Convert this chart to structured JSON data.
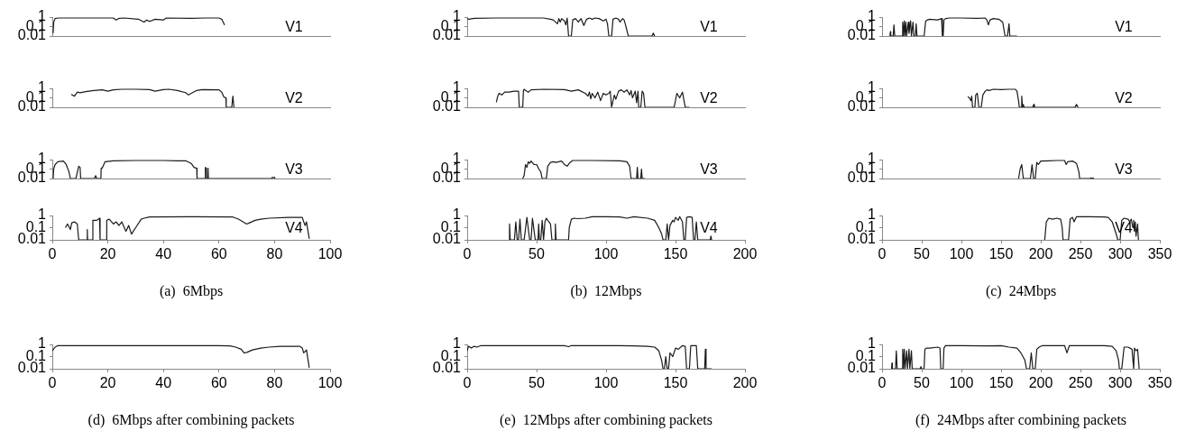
{
  "chart_data": [
    {
      "type": "line",
      "xlim": [
        0,
        100
      ],
      "xticks": [
        0,
        20,
        40,
        60,
        80,
        100
      ],
      "ylim": [
        0.01,
        1
      ],
      "yticks": [
        0.01,
        0.1,
        1
      ],
      "log": true,
      "line_style": "solid",
      "tick_labels": "y",
      "series": [
        {
          "name": "V1",
          "color": "#1a1a1a",
          "x": [
            0.3,
            0.5,
            1,
            2,
            10,
            22,
            23,
            24,
            26,
            31,
            33,
            34,
            35,
            37,
            40,
            41,
            50,
            55,
            60,
            61,
            62
          ],
          "values": [
            0.02,
            0.3,
            0.7,
            0.8,
            0.8,
            0.8,
            0.5,
            0.75,
            0.8,
            0.6,
            0.3,
            0.5,
            0.35,
            0.6,
            0.5,
            0.8,
            0.75,
            0.8,
            0.8,
            0.6,
            0.15
          ]
        }
      ]
    },
    {
      "type": "line",
      "xlim": [
        0,
        100
      ],
      "xticks": [
        0,
        20,
        40,
        60,
        80,
        100
      ],
      "ylim": [
        0.01,
        1
      ],
      "yticks": [
        0.01,
        0.1,
        1
      ],
      "log": true,
      "line_style": "solid",
      "tick_labels": "y",
      "series": [
        {
          "name": "V2",
          "color": "#1a1a1a",
          "x": [
            6.8,
            8,
            9,
            10,
            12,
            15,
            18,
            20,
            22,
            25,
            30,
            35,
            37,
            40,
            42,
            45,
            48,
            49,
            50,
            52,
            54,
            60,
            61,
            61.8,
            62.5,
            62.6,
            64.6,
            65,
            65.4
          ],
          "values": [
            0.23,
            0.15,
            0.4,
            0.35,
            0.45,
            0.6,
            0.7,
            0.5,
            0.7,
            0.8,
            0.8,
            0.75,
            0.5,
            0.75,
            0.8,
            0.6,
            0.35,
            0.2,
            0.3,
            0.6,
            0.75,
            0.7,
            0.4,
            0.12,
            0.1,
            0.01,
            0.01,
            0.15,
            0.01
          ]
        }
      ]
    },
    {
      "type": "line",
      "xlim": [
        0,
        100
      ],
      "xticks": [
        0,
        20,
        40,
        60,
        80,
        100
      ],
      "ylim": [
        0.01,
        1
      ],
      "yticks": [
        0.01,
        0.1,
        1
      ],
      "log": true,
      "line_style": "solid",
      "tick_labels": "y",
      "series": [
        {
          "name": "V3",
          "color": "#1a1a1a",
          "x": [
            0.3,
            0.5,
            1,
            2,
            4,
            5,
            6,
            6.5,
            8.5,
            9.5,
            10,
            10.2,
            15.2,
            15.6,
            16,
            17.5,
            17.6,
            18,
            19,
            22,
            30,
            40,
            45,
            48,
            50,
            51,
            52,
            52.1,
            55,
            55.1,
            55.5,
            55.6,
            56,
            56.1,
            56.2,
            79,
            79.1,
            80,
            80.1
          ],
          "values": [
            0.01,
            0.1,
            0.3,
            0.6,
            0.7,
            0.3,
            0.05,
            0.01,
            0.01,
            0.2,
            0.15,
            0.01,
            0.01,
            0.02,
            0.01,
            0.01,
            0.13,
            0.13,
            0.6,
            0.75,
            0.8,
            0.8,
            0.75,
            0.75,
            0.4,
            0.15,
            0.12,
            0.01,
            0.01,
            0.15,
            0.12,
            0.01,
            0.01,
            0.12,
            0.01,
            0.01,
            0.013,
            0.013,
            0.01
          ]
        }
      ]
    },
    {
      "type": "line",
      "xlim": [
        0,
        100
      ],
      "xticks": [
        0,
        20,
        40,
        60,
        80,
        100
      ],
      "ylim": [
        0.01,
        1
      ],
      "yticks": [
        0.01,
        0.1,
        1
      ],
      "log": true,
      "line_style": "solid",
      "xlabel": "(a)  6Mbps",
      "series": [
        {
          "name": "V4",
          "color": "#1a1a1a",
          "x": [
            4.7,
            5.5,
            6.5,
            7,
            8,
            9,
            9.5,
            12.5,
            12.6,
            12.7,
            14.5,
            14.6,
            16,
            17,
            17.2,
            19.5,
            19.6,
            20.5,
            22,
            23,
            24,
            25,
            26.5,
            27.5,
            28.5,
            30,
            32,
            33,
            35,
            50,
            65,
            67,
            70,
            71,
            73,
            75,
            78,
            85,
            90,
            90.5,
            91,
            91.5,
            92.5
          ],
          "values": [
            0.1,
            0.2,
            0.07,
            0.25,
            0.3,
            0.2,
            0.01,
            0.01,
            0.07,
            0.01,
            0.01,
            0.4,
            0.4,
            0.6,
            0.01,
            0.01,
            0.4,
            0.5,
            0.2,
            0.3,
            0.15,
            0.3,
            0.05,
            0.15,
            0.03,
            0.1,
            0.5,
            0.6,
            0.75,
            0.8,
            0.75,
            0.5,
            0.2,
            0.25,
            0.4,
            0.5,
            0.6,
            0.7,
            0.7,
            0.3,
            0.15,
            0.3,
            0.012
          ]
        }
      ]
    },
    {
      "type": "line",
      "xlim": [
        0,
        200
      ],
      "xticks": [
        0,
        50,
        100,
        150,
        200
      ],
      "ylim": [
        0.01,
        1
      ],
      "yticks": [
        0.01,
        0.1,
        1
      ],
      "log": true,
      "line_style": "solid",
      "tick_labels": "y",
      "series": [
        {
          "name": "V1",
          "color": "#1a1a1a",
          "x": [
            0,
            1,
            5,
            20,
            55,
            60,
            62,
            65,
            66,
            67,
            68,
            70,
            71,
            72,
            73,
            75,
            76,
            78,
            80,
            82,
            83,
            84,
            86,
            88,
            90,
            92,
            95,
            98,
            100,
            101,
            102,
            104,
            105,
            107,
            109,
            110,
            112,
            113,
            114,
            116,
            133,
            134,
            135
          ],
          "values": [
            0.7,
            0.6,
            0.75,
            0.8,
            0.8,
            0.6,
            0.5,
            0.2,
            0.7,
            0.3,
            0.7,
            0.4,
            0.15,
            0.8,
            0.01,
            0.01,
            0.5,
            0.7,
            0.3,
            0.7,
            0.3,
            0.13,
            0.6,
            0.8,
            0.6,
            0.8,
            0.7,
            0.4,
            0.6,
            0.2,
            0.01,
            0.01,
            0.6,
            0.8,
            0.6,
            0.3,
            0.7,
            0.5,
            0.15,
            0.01,
            0.01,
            0.02,
            0.01
          ]
        }
      ]
    },
    {
      "type": "line",
      "xlim": [
        0,
        200
      ],
      "xticks": [
        0,
        50,
        100,
        150,
        200
      ],
      "ylim": [
        0.01,
        1
      ],
      "yticks": [
        0.01,
        0.1,
        1
      ],
      "log": true,
      "line_style": "solid",
      "tick_labels": "y",
      "series": [
        {
          "name": "V2",
          "color": "#1a1a1a",
          "x": [
            21,
            22,
            23,
            25,
            27,
            30,
            34,
            37,
            37.5,
            40,
            40.5,
            41,
            42,
            44,
            46,
            55,
            70,
            75,
            80,
            85,
            87,
            88,
            89,
            90,
            92,
            94,
            96,
            98,
            100,
            102,
            103,
            104,
            105,
            106,
            107,
            109,
            111,
            113,
            115,
            117,
            118,
            119,
            121,
            122,
            123,
            123.5,
            125,
            126,
            127,
            128,
            149,
            151,
            153,
            155,
            157,
            160
          ],
          "values": [
            0.035,
            0.15,
            0.3,
            0.2,
            0.4,
            0.4,
            0.5,
            0.5,
            0.01,
            0.01,
            0.6,
            0.8,
            0.6,
            0.4,
            0.7,
            0.8,
            0.75,
            0.5,
            0.7,
            0.3,
            0.15,
            0.4,
            0.08,
            0.3,
            0.1,
            0.4,
            0.05,
            0.3,
            0.2,
            0.3,
            0.5,
            0.01,
            0.05,
            0.2,
            0.07,
            0.5,
            0.7,
            0.4,
            0.7,
            0.2,
            0.6,
            0.1,
            0.5,
            0.03,
            0.5,
            0.01,
            0.01,
            0.5,
            0.3,
            0.01,
            0.01,
            0.3,
            0.1,
            0.4,
            0.01,
            0.01
          ]
        }
      ]
    },
    {
      "type": "line",
      "xlim": [
        0,
        200
      ],
      "xticks": [
        0,
        50,
        100,
        150,
        200
      ],
      "ylim": [
        0.01,
        1
      ],
      "yticks": [
        0.01,
        0.1,
        1
      ],
      "log": true,
      "line_style": "solid",
      "tick_labels": "y",
      "series": [
        {
          "name": "V3",
          "color": "#1a1a1a",
          "x": [
            40,
            41,
            42,
            43,
            44,
            45,
            46,
            48,
            50,
            52,
            53,
            54,
            57,
            58,
            60,
            62,
            64,
            68,
            70,
            72,
            74,
            76,
            90,
            110,
            115,
            117,
            118,
            122,
            122.5,
            123,
            125,
            125.5,
            126,
            128
          ],
          "values": [
            0.01,
            0.02,
            0.3,
            0.15,
            0.6,
            0.4,
            0.7,
            0.3,
            0.3,
            0.08,
            0.05,
            0.01,
            0.01,
            0.2,
            0.5,
            0.6,
            0.5,
            0.7,
            0.3,
            0.2,
            0.5,
            0.8,
            0.8,
            0.75,
            0.6,
            0.2,
            0.01,
            0.01,
            0.15,
            0.01,
            0.01,
            0.1,
            0.01,
            0.01
          ]
        }
      ]
    },
    {
      "type": "line",
      "xlim": [
        0,
        200
      ],
      "xticks": [
        0,
        50,
        100,
        150,
        200
      ],
      "ylim": [
        0.01,
        1
      ],
      "yticks": [
        0.01,
        0.1,
        1
      ],
      "log": true,
      "line_style": "solid",
      "xlabel": "(b)  12Mbps",
      "series": [
        {
          "name": "V4",
          "color": "#1a1a1a",
          "x": [
            30,
            30.5,
            31,
            34,
            35,
            36,
            37,
            38,
            39,
            41,
            43,
            45,
            46,
            47,
            49,
            51,
            51.5,
            52,
            53,
            54,
            55,
            56,
            57,
            58,
            60,
            61,
            63,
            63.5,
            64,
            73,
            73.5,
            75,
            77,
            80,
            85,
            90,
            100,
            110,
            115,
            120,
            130,
            135,
            138,
            140,
            141,
            143,
            144,
            145,
            146,
            148,
            149,
            150,
            152,
            153,
            155,
            156,
            157,
            158,
            160,
            162,
            163,
            164,
            165,
            166,
            175,
            175.5,
            176
          ],
          "values": [
            0.01,
            0.2,
            0.01,
            0.01,
            0.3,
            0.01,
            0.01,
            0.5,
            0.01,
            0.01,
            0.7,
            0.01,
            0.01,
            0.6,
            0.01,
            0.01,
            0.2,
            0.01,
            0.01,
            0.4,
            0.01,
            0.3,
            0.6,
            0.4,
            0.2,
            0.01,
            0.01,
            0.2,
            0.01,
            0.01,
            0.1,
            0.5,
            0.6,
            0.55,
            0.6,
            0.8,
            0.8,
            0.75,
            0.6,
            0.8,
            0.6,
            0.4,
            0.1,
            0.03,
            0.01,
            0.01,
            0.2,
            0.01,
            0.15,
            0.4,
            0.3,
            0.7,
            0.4,
            0.8,
            0.3,
            0.01,
            0.01,
            0.7,
            0.8,
            0.7,
            0.01,
            0.01,
            0.3,
            0.01,
            0.01,
            0.02,
            0.01
          ]
        }
      ]
    },
    {
      "type": "line",
      "xlim": [
        0,
        350
      ],
      "xticks": [
        0,
        50,
        100,
        150,
        200,
        250,
        300,
        350
      ],
      "ylim": [
        0.01,
        1
      ],
      "yticks": [
        0.01,
        0.1,
        1
      ],
      "log": true,
      "line_style": "solid",
      "tick_labels": "y",
      "series": [
        {
          "name": "V1",
          "color": "#1a1a1a",
          "x": [
            10,
            10.5,
            11,
            14,
            15,
            16,
            25,
            26,
            27,
            28,
            29,
            30,
            31,
            33,
            34,
            36,
            37,
            39,
            40,
            42,
            43,
            44,
            52,
            53,
            55,
            57,
            60,
            70,
            75,
            76,
            77,
            78,
            80,
            85,
            100,
            120,
            130,
            132,
            134,
            136,
            140,
            147,
            152,
            155,
            158,
            160,
            161,
            170
          ],
          "values": [
            0.01,
            0.03,
            0.01,
            0.01,
            0.15,
            0.01,
            0.01,
            0.3,
            0.01,
            0.4,
            0.01,
            0.3,
            0.01,
            0.3,
            0.02,
            0.4,
            0.01,
            0.3,
            0.01,
            0.01,
            0.2,
            0.01,
            0.01,
            0.01,
            0.4,
            0.5,
            0.6,
            0.5,
            0.7,
            0.01,
            0.01,
            0.5,
            0.7,
            0.8,
            0.8,
            0.75,
            0.8,
            0.5,
            0.15,
            0.5,
            0.7,
            0.6,
            0.3,
            0.01,
            0.01,
            0.2,
            0.01,
            0.01
          ]
        }
      ]
    },
    {
      "type": "line",
      "xlim": [
        0,
        350
      ],
      "xticks": [
        0,
        50,
        100,
        150,
        200,
        250,
        300,
        350
      ],
      "ylim": [
        0.01,
        1
      ],
      "yticks": [
        0.01,
        0.1,
        1
      ],
      "log": true,
      "line_style": "solid",
      "tick_labels": "y",
      "series": [
        {
          "name": "V2",
          "color": "#1a1a1a",
          "x": [
            108,
            110,
            112,
            113,
            114,
            117,
            118,
            120,
            122,
            125,
            127,
            130,
            132,
            135,
            140,
            150,
            160,
            168,
            170,
            172,
            173,
            175,
            176,
            177,
            178,
            179,
            190,
            191,
            192,
            243,
            245,
            247
          ],
          "values": [
            0.13,
            0.1,
            0.05,
            0.15,
            0.01,
            0.01,
            0.2,
            0.3,
            0.01,
            0.01,
            0.2,
            0.5,
            0.7,
            0.6,
            0.8,
            0.75,
            0.8,
            0.8,
            0.5,
            0.05,
            0.01,
            0.01,
            0.15,
            0.01,
            0.02,
            0.01,
            0.01,
            0.02,
            0.01,
            0.01,
            0.02,
            0.01
          ]
        }
      ]
    },
    {
      "type": "line",
      "xlim": [
        0,
        350
      ],
      "xticks": [
        0,
        50,
        100,
        150,
        200,
        250,
        300,
        350
      ],
      "ylim": [
        0.01,
        1
      ],
      "yticks": [
        0.01,
        0.1,
        1
      ],
      "log": true,
      "line_style": "solid",
      "tick_labels": "y",
      "series": [
        {
          "name": "V3",
          "color": "#1a1a1a",
          "x": [
            172,
            174,
            176,
            178,
            187,
            189,
            191,
            193,
            195,
            197,
            200,
            210,
            220,
            230,
            232,
            234,
            240,
            245,
            248,
            249,
            262,
            262.5,
            266,
            266.5
          ],
          "values": [
            0.01,
            0.1,
            0.3,
            0.01,
            0.01,
            0.3,
            0.01,
            0.01,
            0.5,
            0.3,
            0.7,
            0.75,
            0.8,
            0.8,
            0.3,
            0.6,
            0.7,
            0.4,
            0.05,
            0.01,
            0.01,
            0.011,
            0.011,
            0.01
          ]
        }
      ]
    },
    {
      "type": "line",
      "xlim": [
        0,
        350
      ],
      "xticks": [
        0,
        50,
        100,
        150,
        200,
        250,
        300,
        350
      ],
      "ylim": [
        0.01,
        1
      ],
      "yticks": [
        0.01,
        0.1,
        1
      ],
      "log": true,
      "line_style": "solid",
      "xlabel": "(c)  24Mbps",
      "series": [
        {
          "name": "V4",
          "color": "#1a1a1a",
          "x": [
            205,
            207,
            210,
            215,
            220,
            225,
            227,
            228,
            235,
            237,
            240,
            242,
            245,
            260,
            280,
            285,
            290,
            295,
            297,
            300,
            302,
            305,
            310,
            312,
            314,
            316,
            317,
            318,
            319,
            320,
            322,
            323
          ],
          "values": [
            0.01,
            0.3,
            0.6,
            0.5,
            0.6,
            0.5,
            0.1,
            0.01,
            0.01,
            0.5,
            0.7,
            0.3,
            0.8,
            0.8,
            0.75,
            0.7,
            0.3,
            0.03,
            0.01,
            0.01,
            0.4,
            0.6,
            0.5,
            0.3,
            0.5,
            0.1,
            0.4,
            0.05,
            0.3,
            0.02,
            0.2,
            0.01
          ]
        }
      ]
    },
    {
      "type": "line",
      "xlim": [
        0,
        100
      ],
      "xticks": [
        0,
        20,
        40,
        60,
        80,
        100
      ],
      "ylim": [
        0.01,
        1
      ],
      "yticks": [
        0.01,
        0.1,
        1
      ],
      "log": true,
      "line_style": "solid",
      "xlabel": "(d)  6Mbps after combining packets",
      "series": [
        {
          "color": "#1a1a1a",
          "x": [
            0,
            1,
            2,
            10,
            60,
            64,
            66,
            68,
            69,
            70,
            72,
            75,
            78,
            82,
            89,
            90,
            90.5,
            91.5,
            92.5
          ],
          "values": [
            0.3,
            0.6,
            0.8,
            0.8,
            0.8,
            0.75,
            0.6,
            0.4,
            0.2,
            0.22,
            0.35,
            0.5,
            0.6,
            0.7,
            0.7,
            0.5,
            0.2,
            0.35,
            0.012
          ]
        }
      ]
    },
    {
      "type": "line",
      "xlim": [
        0,
        200
      ],
      "xticks": [
        0,
        50,
        100,
        150,
        200
      ],
      "ylim": [
        0.01,
        1
      ],
      "yticks": [
        0.01,
        0.1,
        1
      ],
      "log": true,
      "line_style": "solid",
      "xlabel": "(e)  12Mbps after combining packets",
      "series": [
        {
          "color": "#1a1a1a",
          "x": [
            0,
            1,
            3,
            5,
            7,
            10,
            70,
            73,
            75,
            110,
            120,
            130,
            135,
            138,
            140,
            141,
            142,
            143,
            144,
            145,
            146,
            148,
            150,
            152,
            155,
            157,
            158,
            160,
            161,
            165,
            166,
            171,
            171.5,
            172,
            176
          ],
          "values": [
            0.3,
            0.7,
            0.5,
            0.7,
            0.6,
            0.8,
            0.8,
            0.65,
            0.8,
            0.8,
            0.75,
            0.7,
            0.6,
            0.3,
            0.05,
            0.01,
            0.01,
            0.1,
            0.01,
            0.01,
            0.2,
            0.1,
            0.5,
            0.4,
            0.8,
            0.7,
            0.01,
            0.01,
            0.8,
            0.8,
            0.01,
            0.01,
            0.4,
            0.01,
            0.01
          ]
        }
      ]
    },
    {
      "type": "line",
      "xlim": [
        0,
        350
      ],
      "xticks": [
        0,
        50,
        100,
        150,
        200,
        250,
        300,
        350
      ],
      "ylim": [
        0.01,
        1
      ],
      "yticks": [
        0.01,
        0.1,
        1
      ],
      "log": true,
      "line_style": "solid",
      "xlabel": "(f)  24Mbps after combining packets",
      "series": [
        {
          "color": "#1a1a1a",
          "x": [
            12,
            12.5,
            13,
            17,
            18,
            19,
            25,
            26,
            27,
            28,
            29,
            31,
            32,
            34,
            35,
            37,
            38,
            48,
            49,
            50,
            53,
            54,
            56,
            60,
            70,
            73,
            74,
            77,
            78,
            80,
            100,
            130,
            150,
            160,
            170,
            175,
            180,
            182,
            186,
            188,
            190,
            193,
            195,
            198,
            202,
            230,
            233,
            236,
            280,
            290,
            295,
            298,
            299,
            302,
            305,
            310,
            315,
            317,
            318,
            320,
            322,
            324
          ],
          "values": [
            0.01,
            0.03,
            0.01,
            0.01,
            0.3,
            0.01,
            0.01,
            0.4,
            0.01,
            0.4,
            0.01,
            0.3,
            0.01,
            0.4,
            0.01,
            0.3,
            0.01,
            0.01,
            0.015,
            0.01,
            0.01,
            0.4,
            0.5,
            0.5,
            0.6,
            0.5,
            0.01,
            0.01,
            0.5,
            0.8,
            0.8,
            0.75,
            0.8,
            0.6,
            0.5,
            0.2,
            0.05,
            0.01,
            0.01,
            0.2,
            0.01,
            0.01,
            0.4,
            0.6,
            0.8,
            0.8,
            0.2,
            0.8,
            0.8,
            0.7,
            0.3,
            0.05,
            0.01,
            0.01,
            0.6,
            0.6,
            0.4,
            0.01,
            0.5,
            0.3,
            0.4,
            0.01
          ]
        }
      ]
    }
  ]
}
